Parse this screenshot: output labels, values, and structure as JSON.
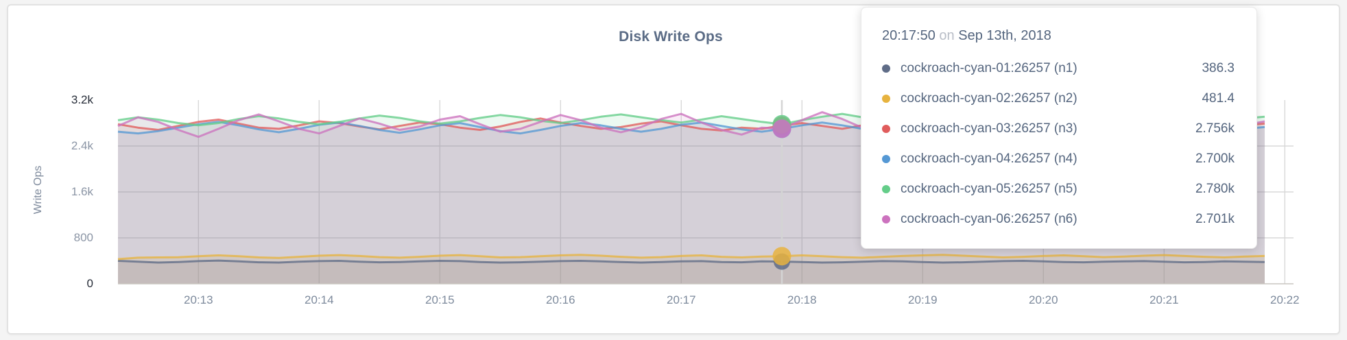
{
  "panel": {
    "title": "Disk Write Ops",
    "ylabel": "Write Ops"
  },
  "tooltip": {
    "time": "20:17:50",
    "connector": "on",
    "date": "Sep 13th, 2018",
    "rows": [
      {
        "name": "cockroach-cyan-01:26257 (n1)",
        "value": "386.3",
        "color": "#5f6c87"
      },
      {
        "name": "cockroach-cyan-02:26257 (n2)",
        "value": "481.4",
        "color": "#e7b33f"
      },
      {
        "name": "cockroach-cyan-03:26257 (n3)",
        "value": "2.756k",
        "color": "#e05c5c"
      },
      {
        "name": "cockroach-cyan-04:26257 (n4)",
        "value": "2.700k",
        "color": "#5598d4"
      },
      {
        "name": "cockroach-cyan-05:26257 (n5)",
        "value": "2.780k",
        "color": "#64cd89"
      },
      {
        "name": "cockroach-cyan-06:26257 (n6)",
        "value": "2.701k",
        "color": "#cc72be"
      }
    ]
  },
  "chart_data": {
    "type": "area",
    "title": "Disk Write Ops",
    "xlabel": "",
    "ylabel": "Write Ops",
    "ylim": [
      0,
      3200
    ],
    "grid": true,
    "legend_position": "tooltip",
    "x_start_time": "20:12:20",
    "x_step_seconds": 10,
    "x_ticks": [
      "20:13",
      "20:14",
      "20:15",
      "20:16",
      "20:17",
      "20:18",
      "20:19",
      "20:20",
      "20:21",
      "20:22"
    ],
    "y_ticks": [
      {
        "value": 0,
        "label": "0",
        "emphasis": true
      },
      {
        "value": 800,
        "label": "800",
        "emphasis": false
      },
      {
        "value": 1600,
        "label": "1.6k",
        "emphasis": false
      },
      {
        "value": 2400,
        "label": "2.4k",
        "emphasis": false
      },
      {
        "value": 3200,
        "label": "3.2k",
        "emphasis": true
      }
    ],
    "hover": {
      "time": "20:17:50",
      "point_index": 33
    },
    "series": [
      {
        "name": "cockroach-cyan-01:26257 (n1)",
        "node": "n1",
        "color": "#5f6c87",
        "values": [
          400,
          385,
          370,
          380,
          395,
          405,
          390,
          375,
          370,
          385,
          395,
          400,
          385,
          375,
          380,
          390,
          400,
          395,
          380,
          370,
          375,
          385,
          395,
          400,
          390,
          380,
          370,
          380,
          390,
          395,
          380,
          375,
          390,
          386.3,
          380,
          370,
          375,
          385,
          395,
          390,
          380,
          370,
          375,
          385,
          395,
          400,
          390,
          380,
          375,
          385,
          390,
          395,
          385,
          375,
          380,
          390,
          385,
          380
        ]
      },
      {
        "name": "cockroach-cyan-02:26257 (n2)",
        "node": "n2",
        "color": "#e7b33f",
        "values": [
          430,
          455,
          460,
          462,
          480,
          495,
          480,
          460,
          450,
          470,
          490,
          500,
          485,
          465,
          455,
          470,
          490,
          500,
          480,
          460,
          465,
          480,
          495,
          505,
          490,
          470,
          455,
          465,
          485,
          495,
          470,
          460,
          475,
          481.4,
          495,
          480,
          465,
          455,
          470,
          485,
          495,
          505,
          490,
          475,
          460,
          470,
          485,
          495,
          480,
          465,
          475,
          490,
          500,
          485,
          470,
          460,
          475,
          485
        ]
      },
      {
        "name": "cockroach-cyan-03:26257 (n3)",
        "node": "n3",
        "color": "#e05c5c",
        "values": [
          2780,
          2720,
          2680,
          2750,
          2820,
          2860,
          2790,
          2720,
          2700,
          2760,
          2830,
          2800,
          2740,
          2690,
          2750,
          2810,
          2780,
          2720,
          2680,
          2740,
          2820,
          2880,
          2810,
          2750,
          2700,
          2730,
          2790,
          2830,
          2760,
          2700,
          2670,
          2720,
          2700,
          2756,
          2800,
          2750,
          2700,
          2760,
          2820,
          2780,
          2720,
          2750,
          2810,
          2860,
          2790,
          2730,
          2680,
          2740,
          2800,
          2770,
          2710,
          2690,
          2750,
          2820,
          2780,
          2730,
          2760,
          2790
        ]
      },
      {
        "name": "cockroach-cyan-04:26257 (n4)",
        "node": "n4",
        "color": "#5598d4",
        "values": [
          2650,
          2620,
          2660,
          2720,
          2780,
          2820,
          2760,
          2690,
          2640,
          2700,
          2770,
          2810,
          2750,
          2680,
          2630,
          2690,
          2760,
          2800,
          2730,
          2660,
          2620,
          2680,
          2750,
          2800,
          2760,
          2700,
          2650,
          2700,
          2770,
          2810,
          2750,
          2690,
          2650,
          2700,
          2760,
          2810,
          2760,
          2700,
          2640,
          2690,
          2750,
          2800,
          2840,
          2780,
          2710,
          2660,
          2700,
          2760,
          2820,
          2770,
          2700,
          2650,
          2690,
          2750,
          2800,
          2750,
          2700,
          2730
        ]
      },
      {
        "name": "cockroach-cyan-05:26257 (n5)",
        "node": "n5",
        "color": "#64cd89",
        "values": [
          2850,
          2900,
          2860,
          2800,
          2760,
          2800,
          2870,
          2920,
          2880,
          2820,
          2780,
          2820,
          2880,
          2930,
          2890,
          2830,
          2790,
          2830,
          2890,
          2940,
          2900,
          2840,
          2800,
          2850,
          2910,
          2950,
          2900,
          2850,
          2810,
          2860,
          2920,
          2870,
          2820,
          2780,
          2850,
          2910,
          2960,
          2900,
          2840,
          2800,
          2860,
          2910,
          2950,
          2890,
          2830,
          2790,
          2840,
          2900,
          2940,
          2880,
          2830,
          2870,
          2920,
          2960,
          2900,
          2850,
          2880,
          2910
        ]
      },
      {
        "name": "cockroach-cyan-06:26257 (n6)",
        "node": "n6",
        "color": "#cc72be",
        "values": [
          2750,
          2900,
          2820,
          2680,
          2560,
          2700,
          2850,
          2950,
          2830,
          2700,
          2620,
          2750,
          2880,
          2790,
          2680,
          2740,
          2860,
          2920,
          2780,
          2650,
          2700,
          2820,
          2940,
          2850,
          2720,
          2640,
          2730,
          2870,
          2960,
          2810,
          2680,
          2600,
          2720,
          2701,
          2850,
          2990,
          2870,
          2720,
          2620,
          2700,
          2830,
          2930,
          2800,
          2670,
          2600,
          2700,
          2820,
          2900,
          2770,
          2650,
          2700,
          2810,
          2900,
          2980,
          2840,
          2700,
          2760,
          2830
        ]
      }
    ]
  },
  "colors": {
    "grid": "#d8d8d8",
    "baseline": "#c9c6c0",
    "hover_line": "#d4d4d4",
    "tick_muted": "#8b95a5",
    "tick_emphasis": "#262c38",
    "xtick": "#7d8a9c",
    "title": "#5a6b85",
    "tooltip_text": "#54657e",
    "tooltip_muted": "#b9bec7"
  }
}
